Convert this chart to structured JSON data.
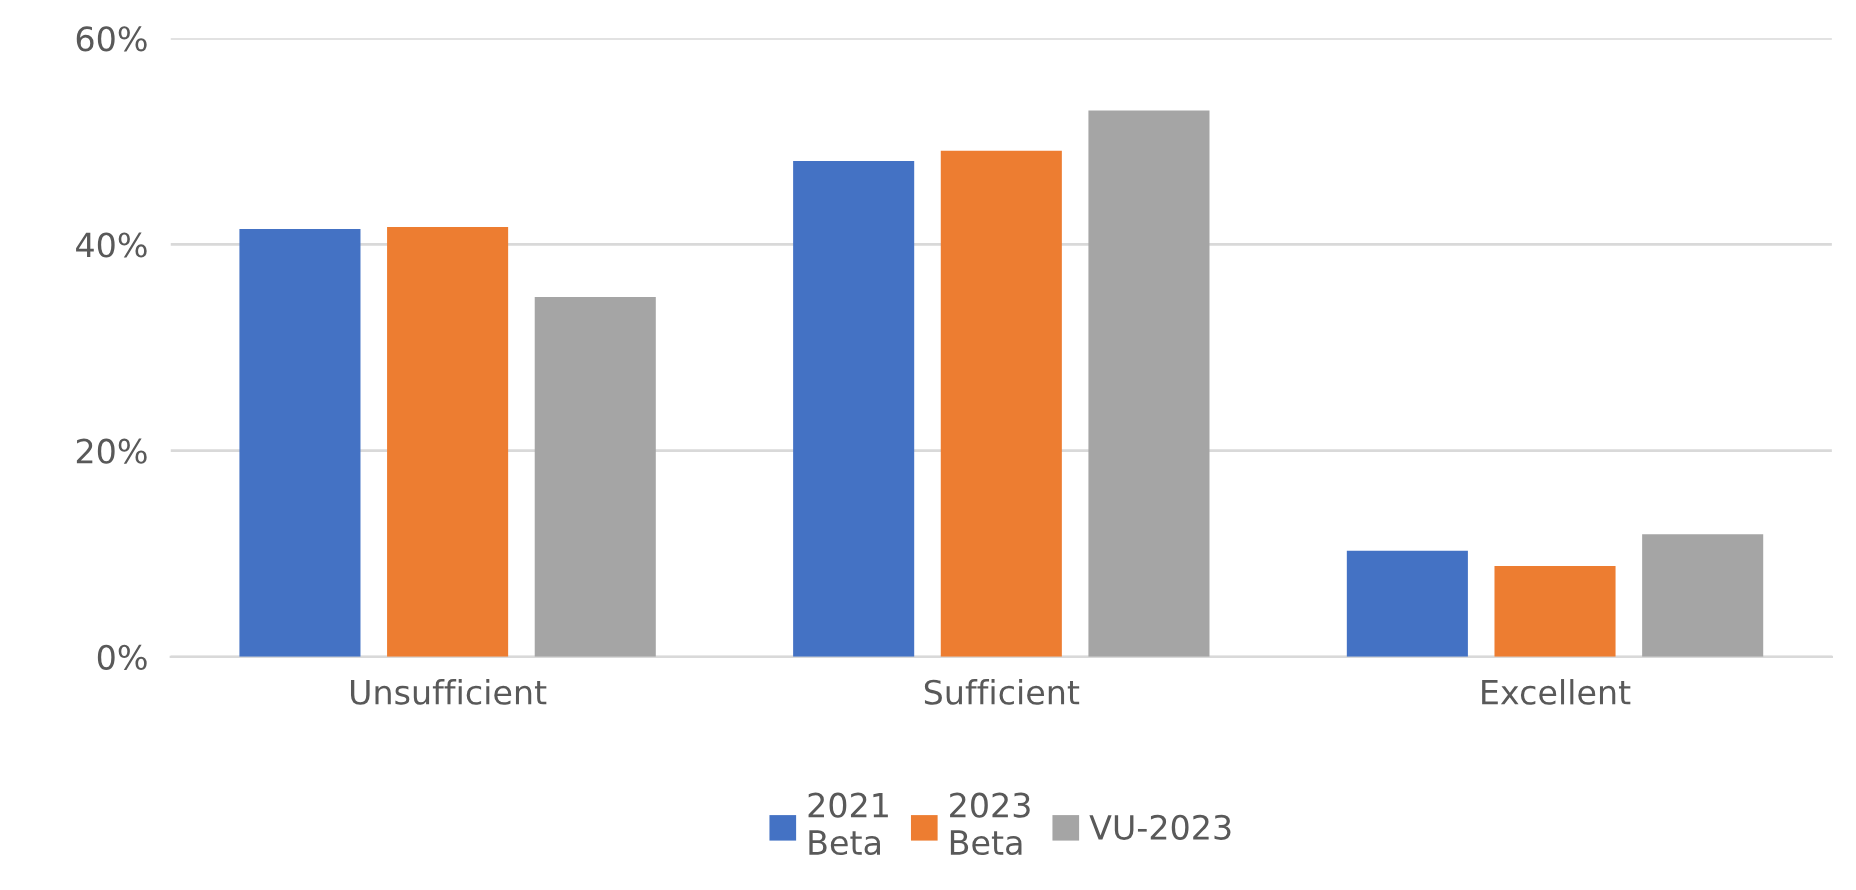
{
  "chart_data": {
    "type": "bar",
    "categories": [
      "Unsufficient",
      "Sufficient",
      "Excellent"
    ],
    "series": [
      {
        "name": "2021\nBeta",
        "color": "#4472c4",
        "values": [
          41.5,
          48.1,
          10.3
        ]
      },
      {
        "name": "2023\nBeta",
        "color": "#ed7d31",
        "values": [
          41.7,
          49.1,
          8.8
        ]
      },
      {
        "name": "VU-2023",
        "color": "#a5a5a5",
        "values": [
          34.9,
          53.0,
          11.9
        ]
      }
    ],
    "ylim": [
      0,
      60
    ],
    "yticks": [
      {
        "value": 0,
        "label": "0%"
      },
      {
        "value": 20,
        "label": "20%"
      },
      {
        "value": 40,
        "label": "40%"
      },
      {
        "value": 60,
        "label": "60%"
      }
    ],
    "grid": "y",
    "legend": "bottom"
  }
}
